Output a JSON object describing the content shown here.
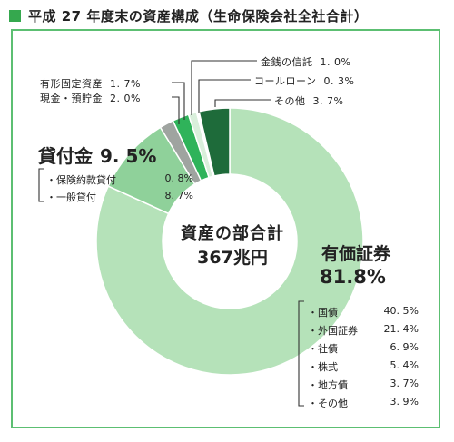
{
  "title": "平成 27 年度末の資産構成（生命保険会社全社合計）",
  "center": {
    "label": "資産の部合計",
    "value": "367兆円"
  },
  "colors": {
    "title_mark": "#35a84e",
    "frame": "#5cbf72"
  },
  "chart_data": {
    "type": "pie",
    "variant": "donut",
    "unit": "%",
    "slices": [
      {
        "name": "有価証券",
        "value": 81.8,
        "color": "#b5e2b9"
      },
      {
        "name": "貸付金",
        "value": 9.5,
        "color": "#8fd19a"
      },
      {
        "name": "有形固定資産",
        "value": 1.7,
        "color": "#9fa4a0"
      },
      {
        "name": "現金・預貯金",
        "value": 2.0,
        "color": "#2fb35a"
      },
      {
        "name": "金銭の信託",
        "value": 1.0,
        "color": "#d9efdb"
      },
      {
        "name": "コールローン",
        "value": 0.3,
        "color": "#ffffff"
      },
      {
        "name": "その他",
        "value": 3.7,
        "color": "#1e6b3a"
      }
    ],
    "labels": {
      "securities": {
        "name": "有価証券",
        "value": "81.8%"
      },
      "loans": {
        "name": "貸付金",
        "value": "9. 5%"
      },
      "fixed": {
        "name": "有形固定資産",
        "value": "1. 7%"
      },
      "cash": {
        "name": "現金・預貯金",
        "value": "2. 0%"
      },
      "trust": {
        "name": "金銭の信託",
        "value": "1. 0%"
      },
      "call": {
        "name": "コールローン",
        "value": "0. 3%"
      },
      "other": {
        "name": "その他",
        "value": "3. 7%"
      }
    },
    "loans_breakdown": [
      {
        "name": "・保険約款貸付",
        "value": "0. 8%"
      },
      {
        "name": "・一般貸付",
        "value": "8. 7%"
      }
    ],
    "securities_breakdown": [
      {
        "name": "・国債",
        "value": "40. 5%"
      },
      {
        "name": "・外国証券",
        "value": "21. 4%"
      },
      {
        "name": "・社債",
        "value": "6. 9%"
      },
      {
        "name": "・株式",
        "value": "5. 4%"
      },
      {
        "name": "・地方債",
        "value": "3. 7%"
      },
      {
        "name": "・その他",
        "value": "3. 9%"
      }
    ]
  }
}
